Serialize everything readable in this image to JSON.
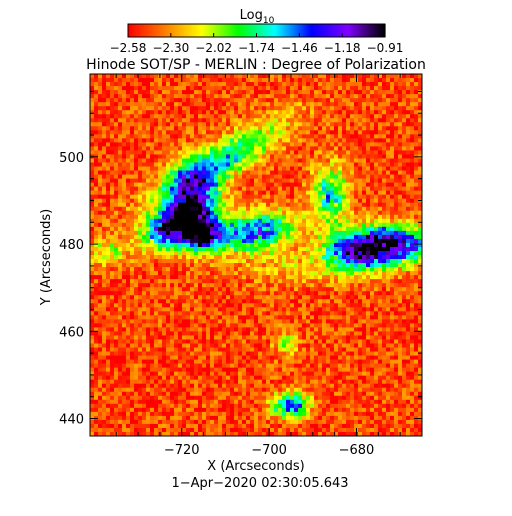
{
  "chart_data": {
    "type": "heatmap",
    "title": "Hinode SOT/SP - MERLIN : Degree of Polarization",
    "colorbar": {
      "label_base": "Log",
      "label_sub": "10",
      "tick_labels": [
        "−2.58",
        "−2.30",
        "−2.02",
        "−1.74",
        "−1.46",
        "−1.18",
        "−0.91"
      ],
      "range": [
        -2.58,
        -0.91
      ],
      "colormap": [
        "#ff0000",
        "#ff7f00",
        "#ffff00",
        "#00ff00",
        "#00ffff",
        "#0000ff",
        "#8000ff",
        "#000000"
      ]
    },
    "xlabel": "X (Arcseconds)",
    "ylabel": "Y (Arcseconds)",
    "xlim": [
      -741,
      -665
    ],
    "ylim": [
      436,
      519
    ],
    "x_ticks": [
      -720,
      -700,
      -680
    ],
    "x_tick_labels": [
      "−720",
      "−700",
      "−680"
    ],
    "y_ticks": [
      440,
      460,
      480,
      500
    ],
    "y_tick_labels": [
      "440",
      "460",
      "480",
      "500"
    ],
    "background_value": -2.45,
    "features": [
      {
        "x": -711,
        "y": 499,
        "sx": 12,
        "sy": 3,
        "angle": 30,
        "peak": -1.7
      },
      {
        "x": -717,
        "y": 489,
        "sx": 4,
        "sy": 6,
        "angle": 0,
        "peak": -1.3
      },
      {
        "x": -722,
        "y": 484,
        "sx": 5,
        "sy": 3,
        "angle": 20,
        "peak": -1.2
      },
      {
        "x": -703,
        "y": 483,
        "sx": 6,
        "sy": 3,
        "angle": 10,
        "peak": -1.4
      },
      {
        "x": -715,
        "y": 482,
        "sx": 3,
        "sy": 2,
        "angle": 0,
        "peak": -1.3
      },
      {
        "x": -686,
        "y": 491,
        "sx": 3,
        "sy": 5,
        "angle": 0,
        "peak": -1.7
      },
      {
        "x": -672,
        "y": 480,
        "sx": 7,
        "sy": 3,
        "angle": 0,
        "peak": -1.1
      },
      {
        "x": -680,
        "y": 478,
        "sx": 5,
        "sy": 3,
        "angle": 0,
        "peak": -1.6
      },
      {
        "x": -695,
        "y": 443,
        "sx": 3,
        "sy": 2,
        "angle": 0,
        "peak": -1.4
      },
      {
        "x": -696,
        "y": 457,
        "sx": 2,
        "sy": 2,
        "angle": 0,
        "peak": -2.0
      },
      {
        "x": -737,
        "y": 478,
        "sx": 3,
        "sy": 2,
        "angle": 0,
        "peak": -2.0
      },
      {
        "x": -693,
        "y": 475,
        "sx": 10,
        "sy": 3,
        "angle": 0,
        "peak": -2.2
      }
    ],
    "date_label": "1−Apr−2020 02:30:05.643"
  }
}
